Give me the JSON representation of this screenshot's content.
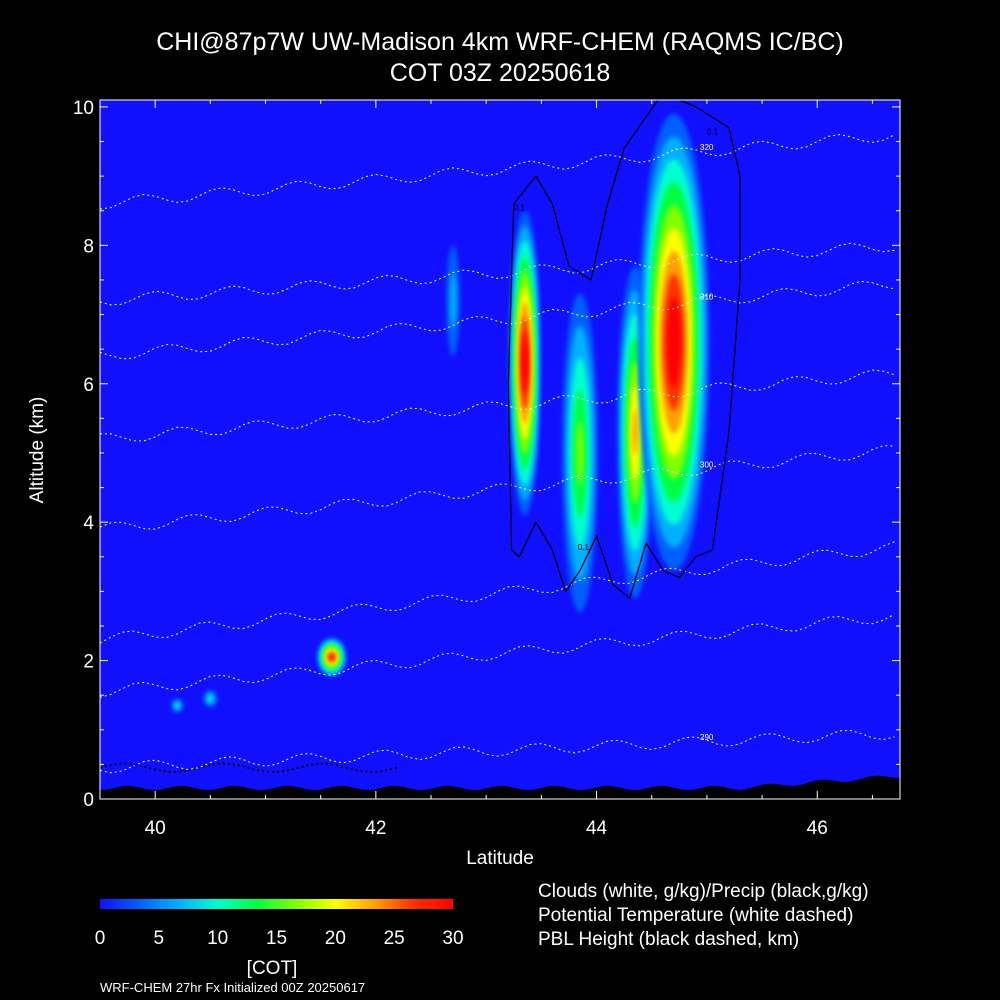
{
  "header": {
    "title_line1": "CHI@87p7W UW-Madison 4km WRF-CHEM (RAQMS IC/BC)",
    "title_line2": "COT 03Z 20250618"
  },
  "chart_data": {
    "type": "heatmap",
    "xlabel": "Latitude",
    "ylabel": "Altitude (km)",
    "xlim": [
      39.5,
      46.75
    ],
    "ylim": [
      0,
      10.1
    ],
    "x_ticks": [
      40,
      42,
      44,
      46
    ],
    "y_ticks": [
      0,
      2,
      4,
      6,
      8,
      10
    ],
    "colorbar": {
      "label": "[COT]",
      "range": [
        0,
        30
      ],
      "ticks": [
        0,
        5,
        10,
        15,
        20,
        25,
        30
      ],
      "colors": [
        "#1010ff",
        "#0060ff",
        "#00b0ff",
        "#00ffd0",
        "#00ff40",
        "#80ff00",
        "#ffff00",
        "#ffa000",
        "#ff3000",
        "#ff0000"
      ]
    },
    "background_value": 0.5,
    "cloud_regions": [
      {
        "lat": 43.35,
        "alt": 6.3,
        "value": 30
      },
      {
        "lat": 43.85,
        "alt": 5.0,
        "value": 14
      },
      {
        "lat": 44.35,
        "alt": 5.3,
        "value": 20
      },
      {
        "lat": 44.7,
        "alt": 6.6,
        "value": 30
      },
      {
        "lat": 41.6,
        "alt": 2.05,
        "value": 28
      },
      {
        "lat": 40.2,
        "alt": 1.35,
        "value": 8
      },
      {
        "lat": 40.5,
        "alt": 1.45,
        "value": 8
      },
      {
        "lat": 42.7,
        "alt": 7.2,
        "value": 4
      }
    ],
    "contour_labels": {
      "cloud": "0.1",
      "theta": [
        "290",
        "300",
        "310",
        "320"
      ]
    },
    "theta_contours": [
      {
        "label": "290",
        "y_left": 0.45,
        "y_right": 0.95
      },
      {
        "label": "",
        "y_left": 1.55,
        "y_right": 2.65
      },
      {
        "label": "",
        "y_left": 2.3,
        "y_right": 3.65
      },
      {
        "label": "300",
        "y_left": 3.9,
        "y_right": 5.05
      },
      {
        "label": "",
        "y_left": 5.2,
        "y_right": 6.15
      },
      {
        "label": "310",
        "y_left": 6.4,
        "y_right": 7.45
      },
      {
        "label": "",
        "y_left": 7.2,
        "y_right": 8.0
      },
      {
        "label": "320",
        "y_left": 8.6,
        "y_right": 9.6
      }
    ]
  },
  "legend": {
    "line1": "Clouds (white, g/kg)/Precip (black,g/kg)",
    "line2": "Potential Temperature (white dashed)",
    "line3": "PBL Height (black dashed, km)"
  },
  "footer": "WRF-CHEM 27hr  Fx Initialized 00Z 20250617"
}
